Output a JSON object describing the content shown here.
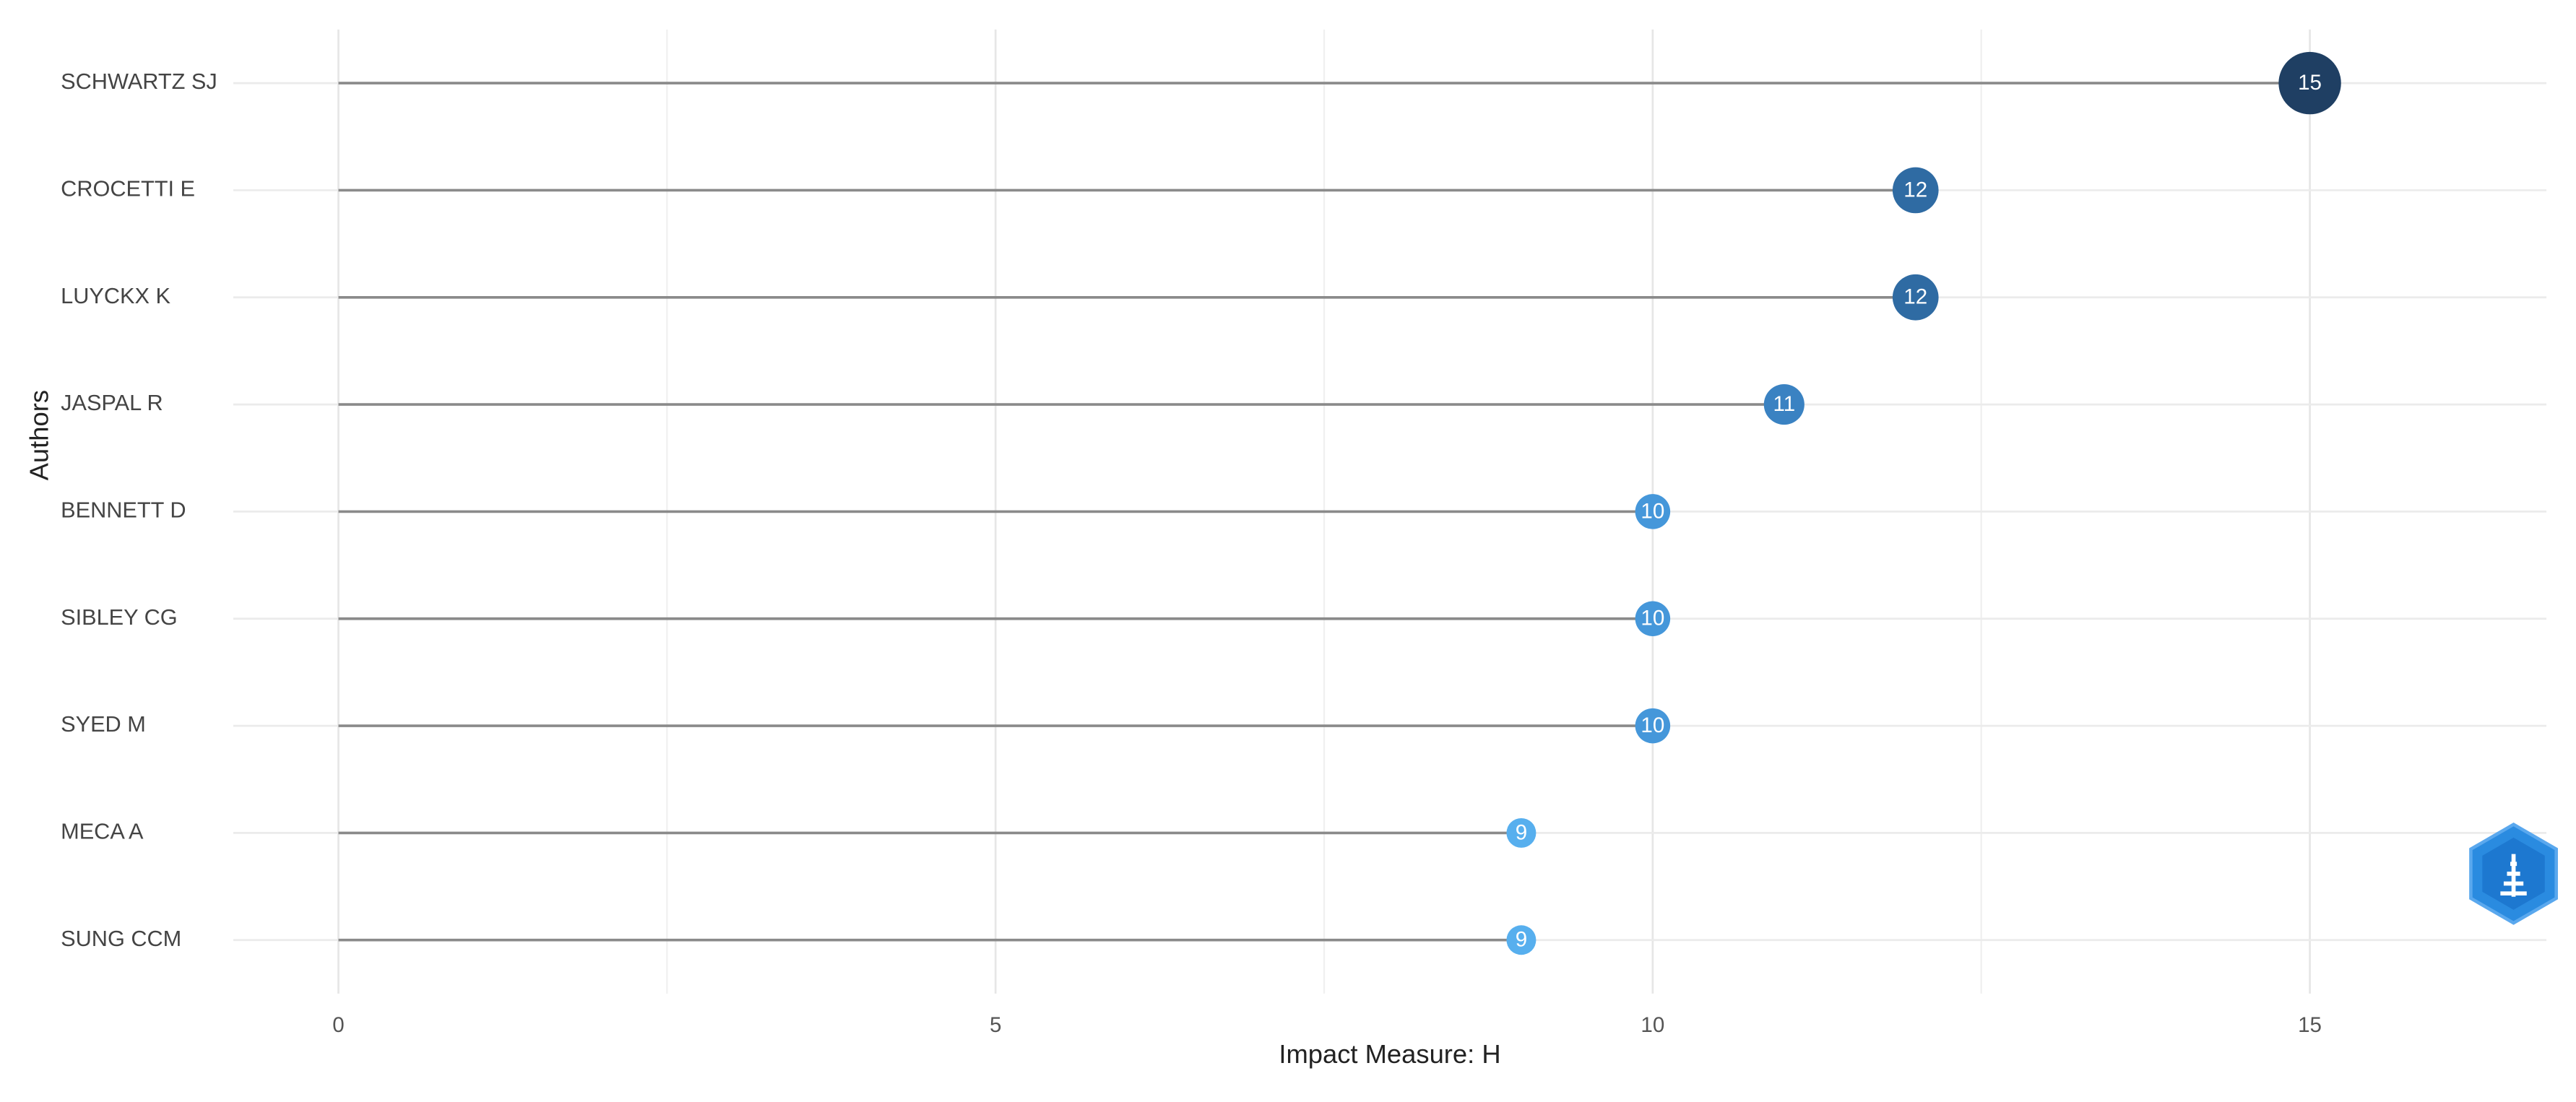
{
  "chart_data": {
    "type": "lollipop",
    "x_label": "Impact Measure: H",
    "y_label": "Authors",
    "categories": [
      "SCHWARTZ SJ",
      "CROCETTI E",
      "LUYCKX K",
      "JASPAL R",
      "BENNETT D",
      "SIBLEY CG",
      "SYED M",
      "MECA A",
      "SUNG CCM"
    ],
    "values": [
      15,
      12,
      12,
      11,
      10,
      10,
      10,
      9,
      9
    ],
    "colors": [
      "#1f3f63",
      "#2f6ba3",
      "#2f6ba3",
      "#3a82c2",
      "#4597da",
      "#4597da",
      "#4597da",
      "#57afee",
      "#57afee"
    ],
    "stem_color": "#8a8a8a",
    "xlim": [
      -0.8,
      16.8
    ],
    "xticks": [
      0,
      5,
      10,
      15
    ],
    "minor_xticks": [
      2.5,
      7.5,
      12.5
    ],
    "grid": true
  }
}
